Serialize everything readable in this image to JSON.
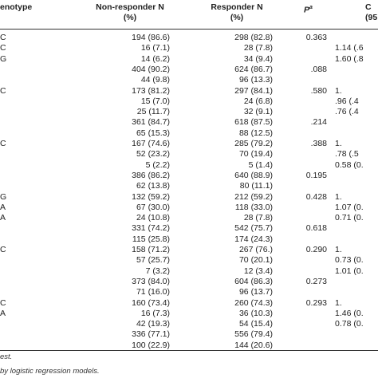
{
  "headers": {
    "genotype": "enotype",
    "non_responder_line1": "Non-responder N",
    "non_responder_line2": "(%)",
    "responder_line1": "Responder N",
    "responder_line2": "(%)",
    "p": "P",
    "p_sup": "a",
    "or_line1": "C",
    "or_line2": "(95"
  },
  "rows": [
    {
      "g": "C",
      "nr": "194 (86.6)",
      "r": "298 (82.8)",
      "p": "0.363",
      "or": ""
    },
    {
      "g": "C",
      "nr": "16 (7.1)",
      "r": "28 (7.8)",
      "p": "",
      "or": "1.14 (.6"
    },
    {
      "g": "G",
      "nr": "14 (6.2)",
      "r": "34 (9.4)",
      "p": "",
      "or": "1.60 (.8"
    },
    {
      "g": "",
      "nr": "404 (90.2)",
      "r": "624 (86.7)",
      "p": ".088",
      "or": ""
    },
    {
      "g": "",
      "nr": "44 (9.8)",
      "r": "96 (13.3)",
      "p": "",
      "or": ""
    },
    {
      "g": "C",
      "nr": "173 (81.2)",
      "r": "297 (84.1)",
      "p": ".580",
      "or": "1."
    },
    {
      "g": "",
      "nr": "15 (7.0)",
      "r": "24 (6.8)",
      "p": "",
      "or": ".96 (.4"
    },
    {
      "g": "",
      "nr": "25 (11.7)",
      "r": "32 (9.1)",
      "p": "",
      "or": ".76 (.4"
    },
    {
      "g": "",
      "nr": "361 (84.7)",
      "r": "618 (87.5)",
      "p": ".214",
      "or": ""
    },
    {
      "g": "",
      "nr": "65 (15.3)",
      "r": "88 (12.5)",
      "p": "",
      "or": ""
    },
    {
      "g": "C",
      "nr": "167 (74.6)",
      "r": "285 (79.2)",
      "p": ".388",
      "or": "1."
    },
    {
      "g": "",
      "nr": "52 (23.2)",
      "r": "70 (19.4)",
      "p": "",
      "or": ".78 (.5"
    },
    {
      "g": "",
      "nr": "5 (2.2)",
      "r": "5 (1.4)",
      "p": "",
      "or": "0.58 (0."
    },
    {
      "g": "",
      "nr": "386 (86.2)",
      "r": "640 (88.9)",
      "p": "0.195",
      "or": ""
    },
    {
      "g": "",
      "nr": "62 (13.8)",
      "r": "80 (11.1)",
      "p": "",
      "or": ""
    },
    {
      "g": "G",
      "nr": "132 (59.2)",
      "r": "212 (59.2)",
      "p": "0.428",
      "or": "1."
    },
    {
      "g": "A",
      "nr": "67 (30.0)",
      "r": "118 (33.0)",
      "p": "",
      "or": "1.07 (0."
    },
    {
      "g": "A",
      "nr": "24 (10.8)",
      "r": "28 (7.8)",
      "p": "",
      "or": "0.71 (0."
    },
    {
      "g": "",
      "nr": "331 (74.2)",
      "r": "542 (75.7)",
      "p": "0.618",
      "or": ""
    },
    {
      "g": "",
      "nr": "115 (25.8)",
      "r": "174 (24.3)",
      "p": "",
      "or": ""
    },
    {
      "g": "C",
      "nr": "158 (71.2)",
      "r": "267 (76.)",
      "p": "0.290",
      "or": "1."
    },
    {
      "g": "",
      "nr": "57 (25.7)",
      "r": "70 (20.1)",
      "p": "",
      "or": "0.73 (0."
    },
    {
      "g": "",
      "nr": "7 (3.2)",
      "r": "12 (3.4)",
      "p": "",
      "or": "1.01 (0."
    },
    {
      "g": "",
      "nr": "373 (84.0)",
      "r": "604 (86.3)",
      "p": "0.273",
      "or": ""
    },
    {
      "g": "",
      "nr": "71 (16.0)",
      "r": "96 (13.7)",
      "p": "",
      "or": ""
    },
    {
      "g": "C",
      "nr": "160 (73.4)",
      "r": "260 (74.3)",
      "p": "0.293",
      "or": "1."
    },
    {
      "g": "A",
      "nr": "16 (7.3)",
      "r": "36 (10.3)",
      "p": "",
      "or": "1.46 (0."
    },
    {
      "g": "",
      "nr": "42 (19.3)",
      "r": "54 (15.4)",
      "p": "",
      "or": "0.78 (0."
    },
    {
      "g": "",
      "nr": "336 (77.1)",
      "r": "556 (79.4)",
      "p": "",
      "or": ""
    },
    {
      "g": "",
      "nr": "100 (22.9)",
      "r": "144 (20.6)",
      "p": "",
      "or": ""
    }
  ],
  "footnotes": [
    "est.",
    "by logistic regression models."
  ]
}
